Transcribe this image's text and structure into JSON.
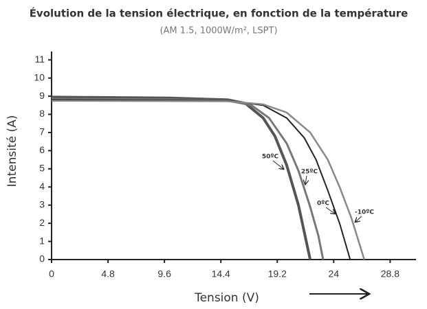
{
  "chart_data": {
    "type": "line",
    "title": "Évolution de la tension électrique, en fonction de la température",
    "subtitle": "(AM 1.5, 1000W/m², LSPT)",
    "x_label": "Tension (V)",
    "y_label": "Intensité (A)",
    "xlim": [
      0,
      31
    ],
    "ylim": [
      0,
      11.5
    ],
    "xticks": [
      0,
      4.8,
      9.6,
      14.4,
      19.2,
      24,
      28.8
    ],
    "yticks": [
      0,
      1,
      2,
      3,
      4,
      5,
      6,
      7,
      8,
      9,
      10,
      11
    ],
    "grid": false,
    "series": [
      {
        "name": "50ºC",
        "color": "#555555",
        "x": [
          0,
          10,
          15,
          16.5,
          18,
          19,
          20,
          21,
          21.6,
          22
        ],
        "values": [
          8.95,
          8.9,
          8.8,
          8.6,
          7.8,
          6.8,
          5.2,
          3.0,
          1.2,
          0
        ]
      },
      {
        "name": "25ºC",
        "color": "#777777",
        "x": [
          0,
          10,
          15,
          17,
          18.5,
          20,
          21,
          22,
          22.7,
          23.1
        ],
        "values": [
          8.85,
          8.82,
          8.75,
          8.5,
          7.8,
          6.4,
          4.9,
          2.9,
          1.3,
          0
        ]
      },
      {
        "name": "0ºC",
        "color": "#222222",
        "x": [
          0,
          15,
          18,
          20,
          21.5,
          22.5,
          23.5,
          24.5,
          25.4
        ],
        "values": [
          8.8,
          8.75,
          8.5,
          7.8,
          6.7,
          5.5,
          3.8,
          2.0,
          0
        ]
      },
      {
        "name": "-10ºC",
        "color": "#888888",
        "x": [
          0,
          15,
          18,
          20,
          22,
          23.5,
          24.5,
          25.5,
          26.6
        ],
        "values": [
          8.75,
          8.72,
          8.55,
          8.1,
          7.0,
          5.5,
          4.0,
          2.3,
          0
        ]
      }
    ]
  }
}
